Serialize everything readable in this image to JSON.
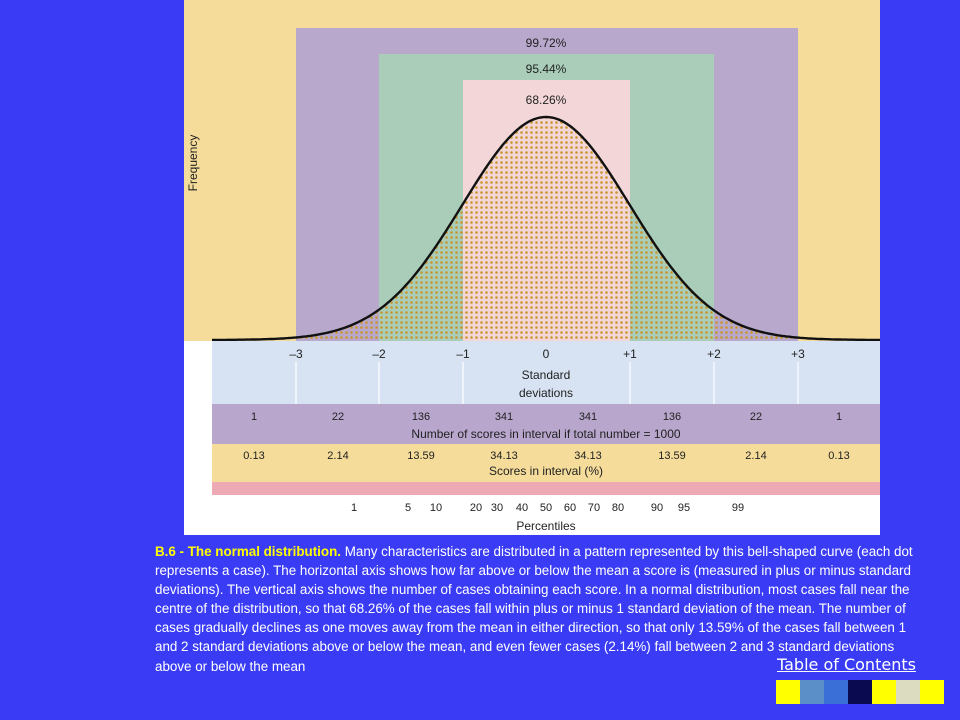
{
  "figure": {
    "areas": {
      "three_sd": "99.72%",
      "two_sd": "95.44%",
      "one_sd": "68.26%"
    },
    "y_axis_label": "Frequency",
    "sd_ticks": [
      "–3",
      "–2",
      "–1",
      "0",
      "+1",
      "+2",
      "+3"
    ],
    "sd_axis_label_line1": "Standard",
    "sd_axis_label_line2": "deviations",
    "counts": [
      "1",
      "22",
      "136",
      "341",
      "341",
      "136",
      "22",
      "1"
    ],
    "counts_label": "Number of scores in interval if total number = 1000",
    "percents": [
      "0.13",
      "2.14",
      "13.59",
      "34.13",
      "34.13",
      "13.59",
      "2.14",
      "0.13"
    ],
    "percents_label": "Scores in interval (%)",
    "percentile_ticks": [
      "1",
      "5",
      "10",
      "20",
      "30",
      "40",
      "50",
      "60",
      "70",
      "80",
      "90",
      "95",
      "99"
    ],
    "percentiles_label": "Percentiles"
  },
  "caption": {
    "title": "B.6 - The normal distribution.",
    "body": " Many characteristics are distributed in a pattern represented by this bell-shaped curve (each dot represents a case). The horizontal axis shows how far above or below the mean a score is (measured in plus or minus standard deviations). The vertical axis shows the number of cases obtaining each score. In a normal distribution, most cases fall near the centre of the distribution, so that 68.26% of the cases fall within plus or minus 1 standard deviation of the mean. The number of cases gradually declines as one moves away from the mean in either direction, so that only 13.59% of the cases fall between 1 and 2 standard deviations above or below the mean, and even fewer cases (2.14%) fall between 2 and 3 standard deviations above or below the mean"
  },
  "nav": {
    "toc_label": "Table of Contents",
    "buttons": [
      {
        "icon": "yellow-nav-button",
        "color": "#ffff00"
      },
      {
        "icon": "steelblue-nav-button",
        "color": "#5b8fc7"
      },
      {
        "icon": "blue-nav-button",
        "color": "#3a6fd8"
      },
      {
        "icon": "navy-nav-button",
        "color": "#0a0a50"
      },
      {
        "icon": "yellow-nav-button",
        "color": "#ffff00"
      },
      {
        "icon": "beige-nav-button",
        "color": "#dcdcc0"
      },
      {
        "icon": "yellow-nav-button",
        "color": "#ffff00"
      }
    ]
  },
  "colors": {
    "background": "#3a3cf5",
    "outer_band": "#f5dc9a",
    "three_sd_band": "#b8a8cc",
    "two_sd_band": "#a9cdb8",
    "one_sd_band": "#f3d6d8",
    "dots": "#c8962a",
    "sd_row": "#d7e2f2",
    "counts_row": "#b8a6cd",
    "percents_row": "#f5dc9a",
    "percentile_row": "#eeaab4"
  }
}
